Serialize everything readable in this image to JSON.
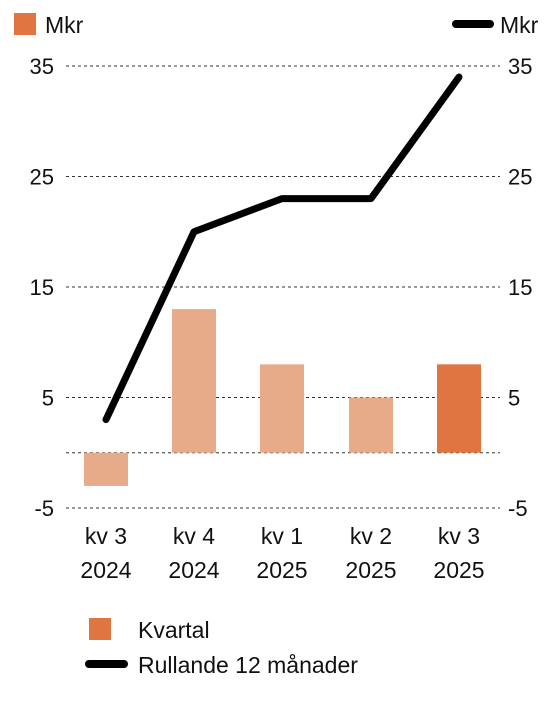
{
  "chart_data": {
    "type": "bar",
    "categories": [
      [
        "kv 3",
        "2024"
      ],
      [
        "kv 4",
        "2024"
      ],
      [
        "kv 1",
        "2025"
      ],
      [
        "kv 2",
        "2025"
      ],
      [
        "kv 3",
        "2025"
      ]
    ],
    "y_ticks": [
      "35",
      "25",
      "15",
      "5",
      "-5"
    ],
    "y_tick_values": [
      35,
      25,
      15,
      5,
      -5
    ],
    "ylim": [
      -5,
      35
    ],
    "grid": true,
    "unit_left": "Mkr",
    "unit_right": "Mkr",
    "series": [
      {
        "name": "Kvartal",
        "type": "bar",
        "values": [
          -3,
          13,
          8,
          5,
          8
        ],
        "colors": [
          "#e8ab89",
          "#e8ab89",
          "#e8ab89",
          "#e8ab89",
          "#e07541"
        ]
      },
      {
        "name": "Rullande 12 månader",
        "type": "line",
        "values": [
          3,
          20,
          23,
          23,
          34
        ],
        "color": "#000000"
      }
    ],
    "legend": {
      "placement": "bottom-left",
      "items": [
        {
          "label": "Kvartal",
          "color": "#e07541",
          "kind": "bar"
        },
        {
          "label": "Rullande 12 månader",
          "color": "#000000",
          "kind": "line"
        }
      ]
    },
    "colors": {
      "bar_light": "#e8ab89",
      "bar_accent": "#e07541",
      "line": "#000000",
      "grid": "#333333"
    }
  }
}
